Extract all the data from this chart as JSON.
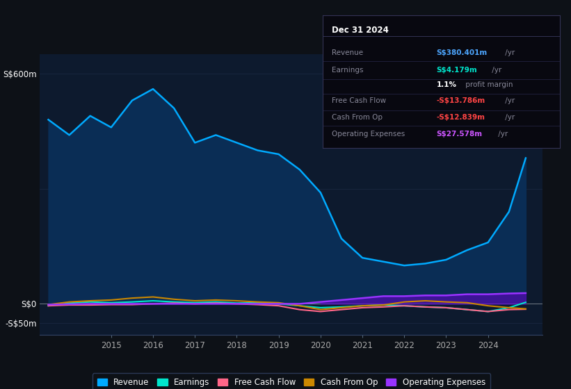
{
  "bg_color": "#0d1117",
  "chart_bg": "#0d1a2e",
  "years": [
    2013.5,
    2014.0,
    2014.5,
    2015.0,
    2015.5,
    2016.0,
    2016.5,
    2017.0,
    2017.5,
    2018.0,
    2018.5,
    2019.0,
    2019.5,
    2020.0,
    2020.5,
    2021.0,
    2021.5,
    2022.0,
    2022.5,
    2023.0,
    2023.5,
    2024.0,
    2024.5,
    2024.9
  ],
  "revenue": [
    480,
    440,
    490,
    460,
    530,
    560,
    510,
    420,
    440,
    420,
    400,
    390,
    350,
    290,
    170,
    120,
    110,
    100,
    105,
    115,
    140,
    160,
    240,
    380
  ],
  "earnings": [
    -5,
    2,
    5,
    3,
    5,
    8,
    5,
    3,
    5,
    2,
    3,
    0,
    -5,
    -10,
    -8,
    -5,
    -3,
    -5,
    -8,
    -10,
    -15,
    -20,
    -10,
    4
  ],
  "free_cash_flow": [
    -5,
    -3,
    -3,
    -2,
    -2,
    0,
    2,
    0,
    2,
    0,
    -2,
    -5,
    -15,
    -20,
    -15,
    -10,
    -8,
    -5,
    -8,
    -10,
    -15,
    -20,
    -15,
    -14
  ],
  "cash_from_op": [
    -2,
    5,
    8,
    10,
    15,
    18,
    12,
    8,
    10,
    8,
    5,
    3,
    -5,
    -15,
    -10,
    -5,
    -3,
    5,
    8,
    5,
    3,
    -5,
    -10,
    -13
  ],
  "operating_expenses": [
    -2,
    -1,
    0,
    0,
    0,
    0,
    0,
    0,
    0,
    0,
    0,
    0,
    0,
    5,
    10,
    15,
    20,
    20,
    22,
    22,
    25,
    25,
    27,
    28
  ],
  "revenue_color": "#00aaff",
  "revenue_fill": "#0a2d55",
  "earnings_color": "#00e5cc",
  "fcf_color": "#ff6688",
  "cashop_color": "#cc8800",
  "opex_color": "#9933ff",
  "opex_fill": "#6600cc",
  "ylim": [
    -80,
    650
  ],
  "xlim": [
    2013.3,
    2025.3
  ],
  "yticks": [
    -50,
    0,
    300,
    600
  ],
  "ytick_labels": [
    "-S$50m",
    "S$0",
    "",
    "S$600m"
  ],
  "xticks": [
    2015,
    2016,
    2017,
    2018,
    2019,
    2020,
    2021,
    2022,
    2023,
    2024
  ],
  "infobox": {
    "date": "Dec 31 2024",
    "rows": [
      {
        "label": "Revenue",
        "value": "S$380.401m",
        "value_color": "#4da6ff",
        "suffix": " /yr"
      },
      {
        "label": "Earnings",
        "value": "S$4.179m",
        "value_color": "#00e5cc",
        "suffix": " /yr"
      },
      {
        "label": "",
        "value": "1.1%",
        "value_color": "#ffffff",
        "suffix": " profit margin"
      },
      {
        "label": "Free Cash Flow",
        "value": "-S$13.786m",
        "value_color": "#ff4444",
        "suffix": " /yr"
      },
      {
        "label": "Cash From Op",
        "value": "-S$12.839m",
        "value_color": "#ff4444",
        "suffix": " /yr"
      },
      {
        "label": "Operating Expenses",
        "value": "S$27.578m",
        "value_color": "#cc55ff",
        "suffix": " /yr"
      }
    ]
  },
  "legend": [
    {
      "label": "Revenue",
      "color": "#00aaff"
    },
    {
      "label": "Earnings",
      "color": "#00e5cc"
    },
    {
      "label": "Free Cash Flow",
      "color": "#ff6688"
    },
    {
      "label": "Cash From Op",
      "color": "#cc8800"
    },
    {
      "label": "Operating Expenses",
      "color": "#9933ff"
    }
  ]
}
